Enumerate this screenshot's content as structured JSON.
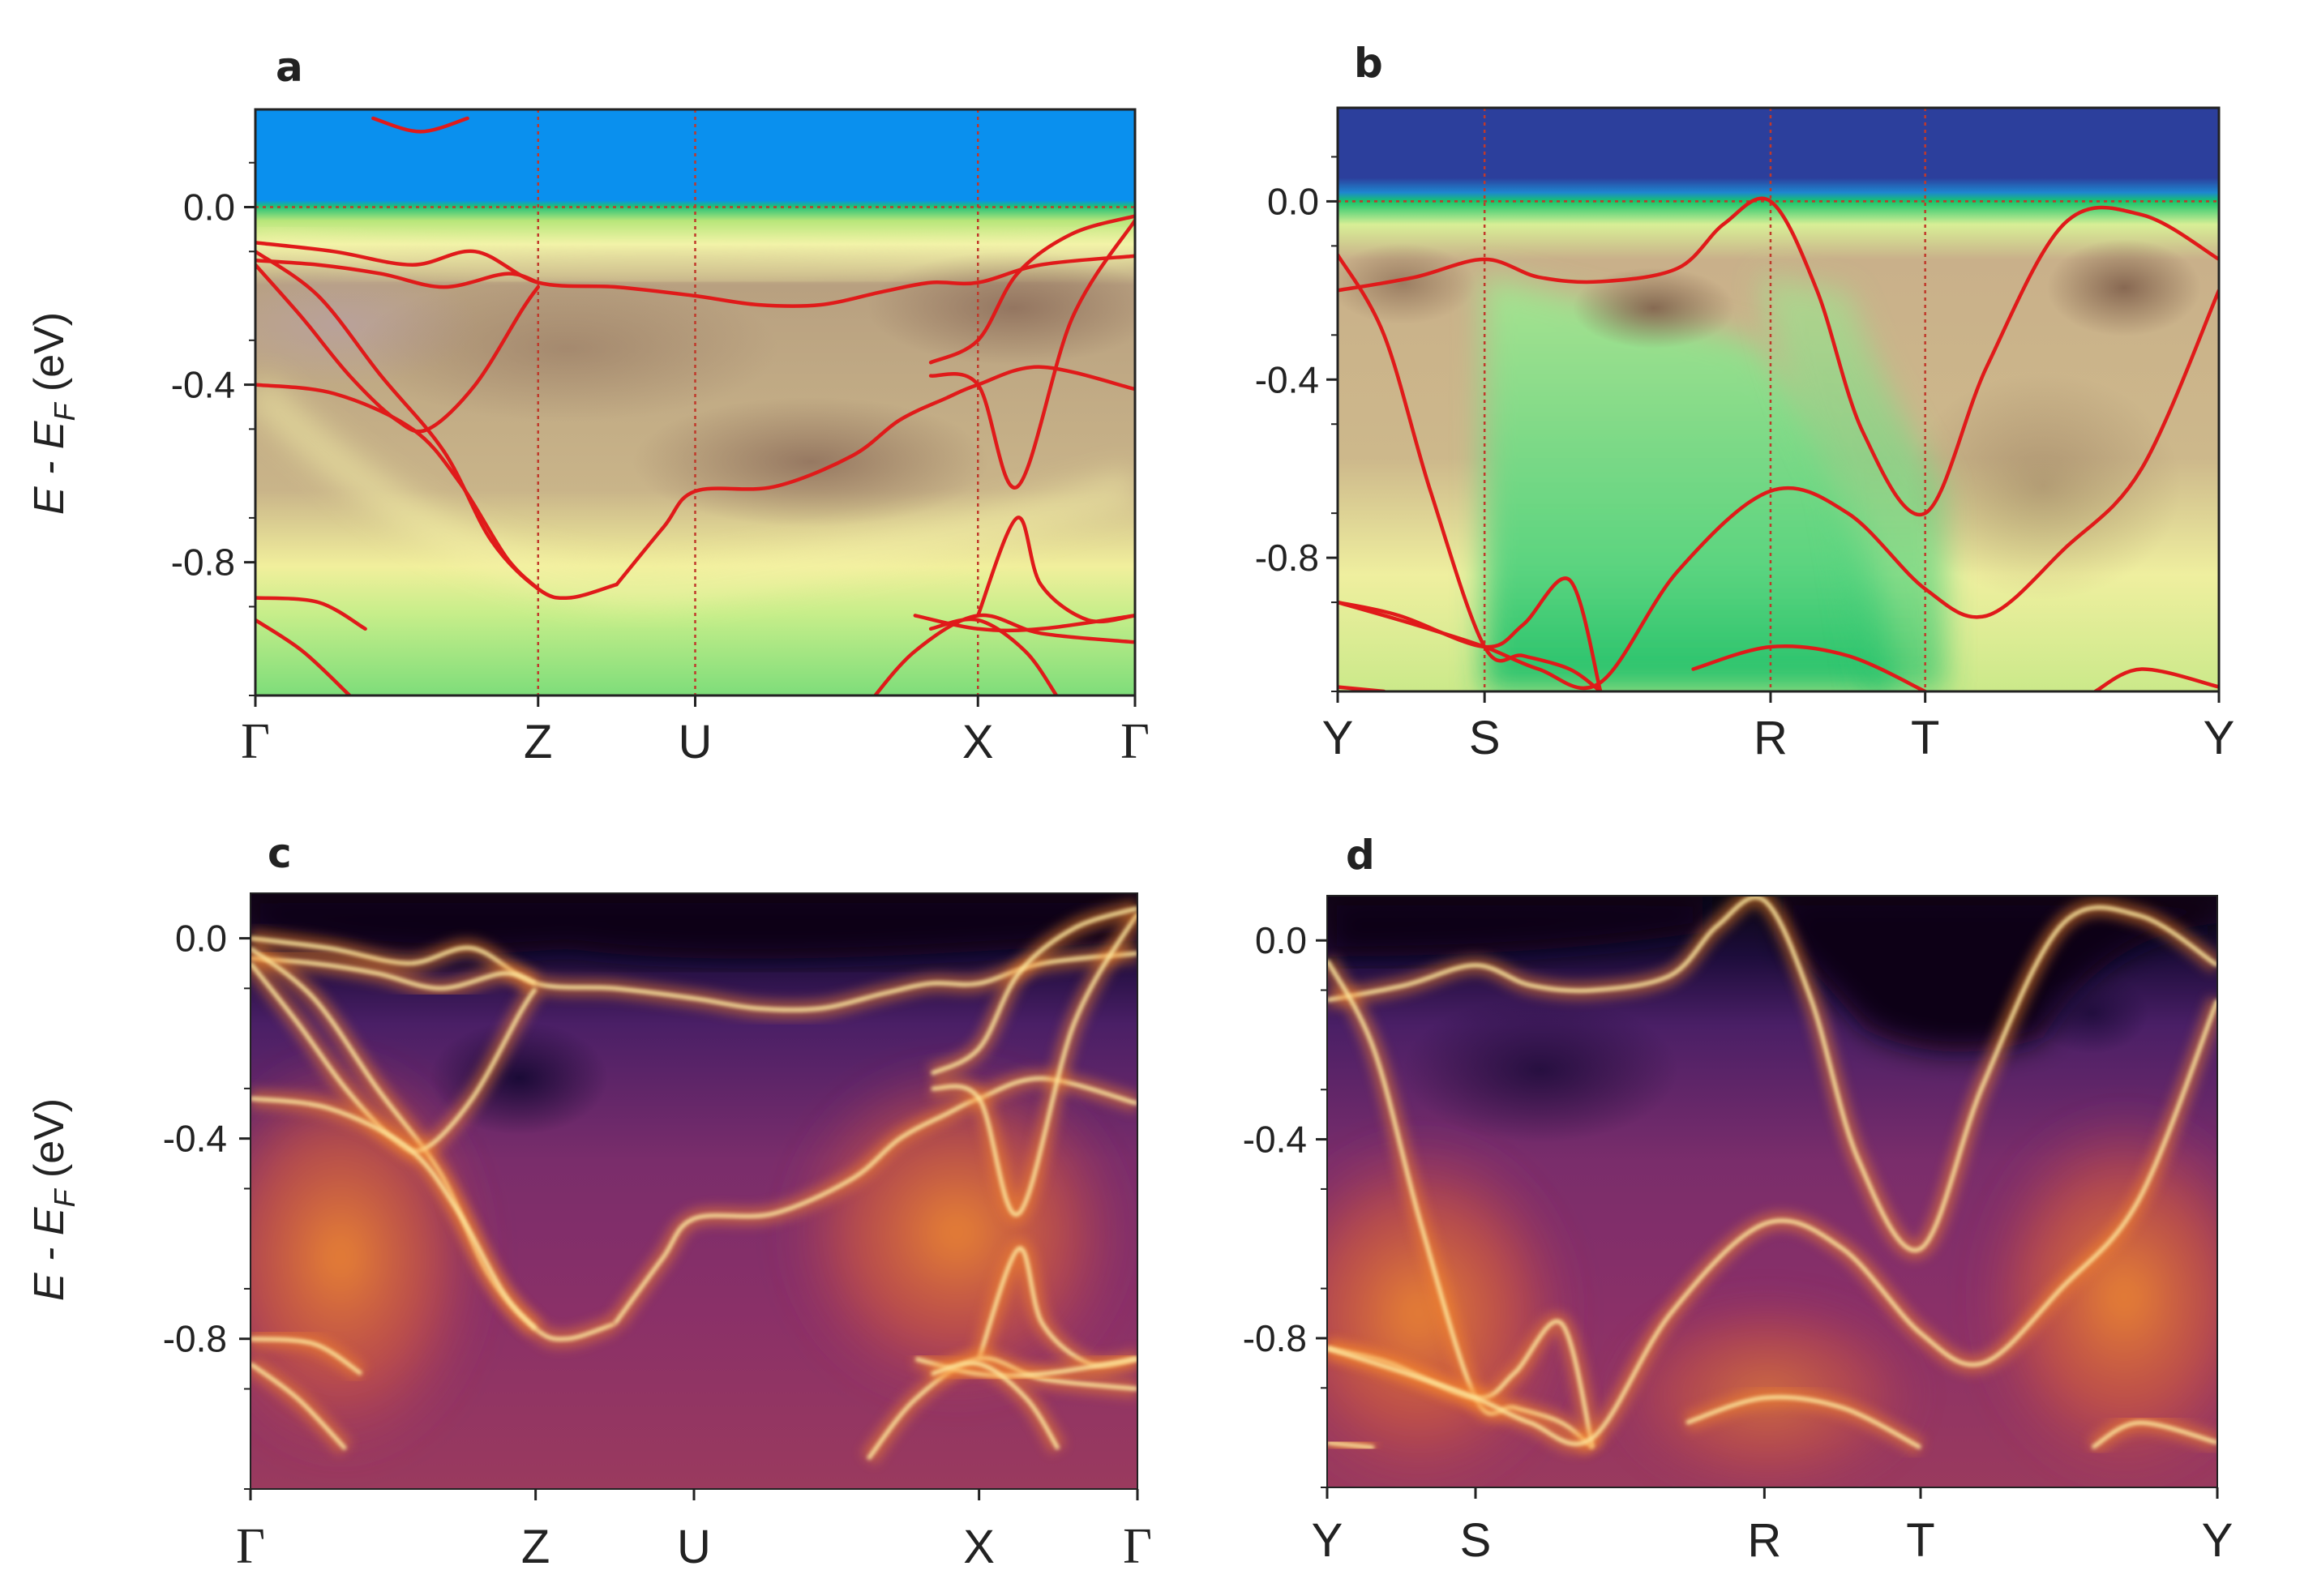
{
  "chart_data": [
    {
      "id": "a",
      "type": "heatmap",
      "panel_label": "a",
      "ylabel": "E - E",
      "ylabel_sub": "F",
      "ylabel_unit": " (eV)",
      "ylim": [
        -1.1,
        0.22
      ],
      "yticks": [
        0.0,
        -0.4,
        -0.8
      ],
      "ytick_labels": [
        "0.0",
        "-0.4",
        "-0.8"
      ],
      "xlim": [
        0,
        5.6
      ],
      "kpoints": [
        {
          "label": "Γ",
          "x": 0.0
        },
        {
          "label": "Z",
          "x": 1.8
        },
        {
          "label": "U",
          "x": 2.8
        },
        {
          "label": "X",
          "x": 4.6
        },
        {
          "label": "Γ",
          "x": 5.6
        }
      ],
      "colormap": "ARPES-green-yellow-brown",
      "fermi_line": 0.0,
      "dft_bands": [
        {
          "name": "band-1",
          "x": [
            0,
            0.5,
            1.0,
            1.4,
            1.8,
            2.3,
            2.8,
            3.2,
            3.6,
            4.0,
            4.3,
            4.6,
            5.0,
            5.6
          ],
          "y": [
            -0.08,
            -0.1,
            -0.13,
            -0.1,
            -0.17,
            -0.18,
            -0.2,
            -0.22,
            -0.22,
            -0.19,
            -0.17,
            -0.17,
            -0.13,
            -0.11
          ]
        },
        {
          "name": "band-2",
          "x": [
            0,
            0.4,
            0.8,
            1.2,
            1.6,
            1.8
          ],
          "y": [
            -0.12,
            -0.13,
            -0.15,
            -0.18,
            -0.15,
            -0.17
          ]
        },
        {
          "name": "band-3",
          "x": [
            0,
            0.4,
            0.8,
            1.2,
            1.5,
            1.8,
            2.0,
            2.3
          ],
          "y": [
            -0.1,
            -0.2,
            -0.38,
            -0.55,
            -0.75,
            -0.86,
            -0.88,
            -0.85
          ]
        },
        {
          "name": "band-4",
          "x": [
            0,
            0.3,
            0.6,
            0.9,
            1.1,
            1.4,
            1.7,
            1.8
          ],
          "y": [
            -0.13,
            -0.25,
            -0.38,
            -0.48,
            -0.5,
            -0.4,
            -0.23,
            -0.18
          ]
        },
        {
          "name": "band-5",
          "x": [
            0,
            0.5,
            1.0,
            1.3,
            1.6,
            1.8
          ],
          "y": [
            -0.4,
            -0.42,
            -0.5,
            -0.62,
            -0.79,
            -0.86
          ]
        },
        {
          "name": "band-6",
          "x": [
            2.3,
            2.6,
            2.8,
            3.3,
            3.8,
            4.1,
            4.4,
            4.6,
            5.0,
            5.6
          ],
          "y": [
            -0.85,
            -0.72,
            -0.64,
            -0.63,
            -0.56,
            -0.48,
            -0.43,
            -0.4,
            -0.36,
            -0.41
          ]
        },
        {
          "name": "band-7",
          "x": [
            4.3,
            4.6,
            4.85,
            5.2,
            5.6
          ],
          "y": [
            -0.38,
            -0.4,
            -0.63,
            -0.25,
            -0.03
          ]
        },
        {
          "name": "band-8",
          "x": [
            4.3,
            4.6,
            4.85,
            5.2,
            5.6
          ],
          "y": [
            -0.35,
            -0.3,
            -0.15,
            -0.06,
            -0.02
          ]
        },
        {
          "name": "band-9",
          "x": [
            4.6,
            4.85,
            5.0,
            5.3,
            5.6
          ],
          "y": [
            -0.92,
            -0.7,
            -0.85,
            -0.93,
            -0.92
          ]
        },
        {
          "name": "band-10",
          "x": [
            3.9,
            4.2,
            4.6,
            5.0,
            5.6
          ],
          "y": [
            -1.12,
            -1.0,
            -0.92,
            -0.96,
            -0.98
          ]
        },
        {
          "name": "band-11",
          "x": [
            4.2,
            4.6,
            5.0,
            5.6
          ],
          "y": [
            -0.92,
            -0.95,
            -0.95,
            -0.92
          ]
        },
        {
          "name": "band-12",
          "x": [
            4.3,
            4.6,
            4.9,
            5.1
          ],
          "y": [
            -0.95,
            -0.93,
            -1.0,
            -1.1
          ]
        },
        {
          "name": "band-13",
          "x": [
            0,
            0.4,
            0.7
          ],
          "y": [
            -0.88,
            -0.89,
            -0.95
          ]
        },
        {
          "name": "band-14",
          "x": [
            0,
            0.3,
            0.6
          ],
          "y": [
            -0.93,
            -1.0,
            -1.1
          ]
        },
        {
          "name": "band-15",
          "x": [
            0.75,
            1.05,
            1.35
          ],
          "y": [
            0.2,
            0.17,
            0.2
          ]
        }
      ]
    },
    {
      "id": "b",
      "type": "heatmap",
      "panel_label": "b",
      "ylim": [
        -1.1,
        0.21
      ],
      "yticks": [
        0.0,
        -0.4,
        -0.8
      ],
      "ytick_labels": [
        "0.0",
        "-0.4",
        "-0.8"
      ],
      "xlim": [
        0,
        5.7
      ],
      "kpoints": [
        {
          "label": "Y",
          "x": 0.0
        },
        {
          "label": "S",
          "x": 0.95
        },
        {
          "label": "R",
          "x": 2.8
        },
        {
          "label": "T",
          "x": 3.8
        },
        {
          "label": "Y",
          "x": 5.7
        }
      ],
      "colormap": "ARPES-green-yellow-brown",
      "fermi_line": 0.0,
      "dft_bands": [
        {
          "name": "band-1",
          "x": [
            0,
            0.5,
            0.95,
            1.3,
            1.7,
            2.2,
            2.5,
            2.8,
            3.1,
            3.4,
            3.8,
            4.2,
            4.7,
            5.2,
            5.7
          ],
          "y": [
            -0.2,
            -0.17,
            -0.13,
            -0.17,
            -0.18,
            -0.15,
            -0.05,
            0.0,
            -0.2,
            -0.52,
            -0.7,
            -0.37,
            -0.05,
            -0.03,
            -0.13
          ]
        },
        {
          "name": "band-2",
          "x": [
            0,
            0.3,
            0.6,
            0.95,
            1.2,
            1.5,
            1.7
          ],
          "y": [
            -0.12,
            -0.3,
            -0.65,
            -1.0,
            -1.02,
            -1.05,
            -1.1
          ]
        },
        {
          "name": "band-3",
          "x": [
            0,
            0.4,
            0.95,
            1.2,
            1.5,
            1.7
          ],
          "y": [
            -0.9,
            -0.93,
            -1.0,
            -0.95,
            -0.85,
            -1.1
          ]
        },
        {
          "name": "band-4",
          "x": [
            0,
            0.5,
            0.95,
            1.3,
            1.7,
            2.2,
            2.8,
            3.3,
            3.8,
            4.2,
            4.7,
            5.2,
            5.7
          ],
          "y": [
            -0.9,
            -0.95,
            -1.0,
            -1.05,
            -1.08,
            -0.83,
            -0.65,
            -0.7,
            -0.87,
            -0.93,
            -0.78,
            -0.6,
            -0.2
          ]
        },
        {
          "name": "band-5",
          "x": [
            2.3,
            2.8,
            3.3,
            3.8
          ],
          "y": [
            -1.05,
            -1.0,
            -1.02,
            -1.1
          ]
        },
        {
          "name": "band-6",
          "x": [
            0,
            0.3
          ],
          "y": [
            -1.09,
            -1.1
          ]
        },
        {
          "name": "band-7",
          "x": [
            4.9,
            5.2,
            5.7
          ],
          "y": [
            -1.1,
            -1.05,
            -1.09
          ]
        }
      ]
    },
    {
      "id": "c",
      "type": "heatmap",
      "panel_label": "c",
      "ylabel": "E - E",
      "ylabel_sub": "F",
      "ylabel_unit": " (eV)",
      "ylim": [
        -1.1,
        0.09
      ],
      "yticks": [
        0.0,
        -0.4,
        -0.8
      ],
      "ytick_labels": [
        "0.0",
        "-0.4",
        "-0.8"
      ],
      "xlim": [
        0,
        5.6
      ],
      "kpoints": [
        {
          "label": "Γ",
          "x": 0.0
        },
        {
          "label": "Z",
          "x": 1.8
        },
        {
          "label": "U",
          "x": 2.8
        },
        {
          "label": "X",
          "x": 4.6
        },
        {
          "label": "Γ",
          "x": 5.6
        }
      ],
      "colormap": "inferno"
    },
    {
      "id": "d",
      "type": "heatmap",
      "panel_label": "d",
      "ylim": [
        -1.1,
        0.09
      ],
      "yticks": [
        0.0,
        -0.4,
        -0.8
      ],
      "ytick_labels": [
        "0.0",
        "-0.4",
        "-0.8"
      ],
      "xlim": [
        0,
        5.7
      ],
      "kpoints": [
        {
          "label": "Y",
          "x": 0.0
        },
        {
          "label": "S",
          "x": 0.95
        },
        {
          "label": "R",
          "x": 2.8
        },
        {
          "label": "T",
          "x": 3.8
        },
        {
          "label": "Y",
          "x": 5.7
        }
      ],
      "colormap": "inferno"
    }
  ]
}
